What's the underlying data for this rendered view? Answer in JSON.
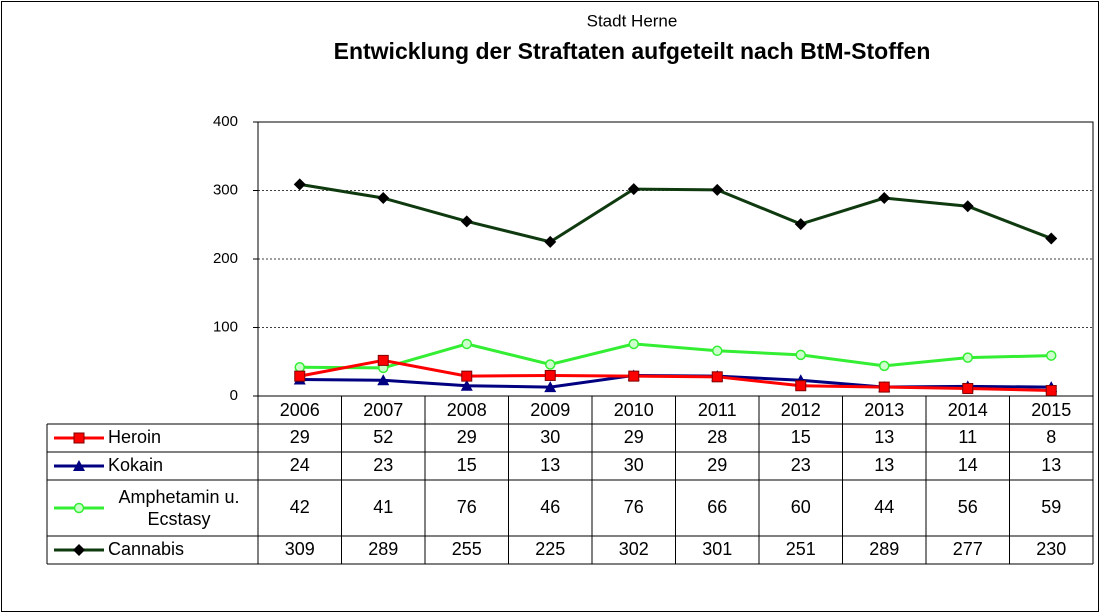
{
  "chart_data": {
    "type": "line",
    "subtitle": "Stadt Herne",
    "title": "Entwicklung der Straftaten aufgeteilt nach BtM-Stoffen",
    "categories": [
      "2006",
      "2007",
      "2008",
      "2009",
      "2010",
      "2011",
      "2012",
      "2013",
      "2014",
      "2015"
    ],
    "series": [
      {
        "name": "Heroin",
        "color": "#ff0000",
        "marker": "square",
        "values": [
          29,
          52,
          29,
          30,
          29,
          28,
          15,
          13,
          11,
          8
        ]
      },
      {
        "name": "Kokain",
        "color": "#000080",
        "marker": "triangle",
        "values": [
          24,
          23,
          15,
          13,
          30,
          29,
          23,
          13,
          14,
          13
        ]
      },
      {
        "name": "Amphetamin u. Ecstasy",
        "color": "#33ee33",
        "marker": "circle",
        "values": [
          42,
          41,
          76,
          46,
          76,
          66,
          60,
          44,
          56,
          59
        ]
      },
      {
        "name": "Cannabis",
        "color": "#0f3a0f",
        "marker": "diamond",
        "values": [
          309,
          289,
          255,
          225,
          302,
          301,
          251,
          289,
          277,
          230
        ]
      }
    ],
    "ylim": [
      0,
      400
    ],
    "yticks": [
      0,
      100,
      200,
      300,
      400
    ],
    "grid": true
  }
}
